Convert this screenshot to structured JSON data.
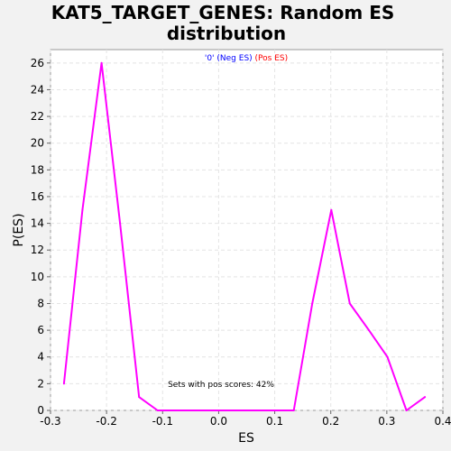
{
  "chart_data": {
    "type": "line",
    "title_line1": "KAT5_TARGET_GENES: Random ES",
    "title_line2": "distribution",
    "xlabel": "ES",
    "ylabel": "P(ES)",
    "xlim": [
      -0.3,
      0.4
    ],
    "ylim": [
      0,
      27
    ],
    "x_ticks": [
      "-0.3",
      "-0.2",
      "-0.1",
      "0.0",
      "0.1",
      "0.2",
      "0.3",
      "0.4"
    ],
    "y_ticks": [
      "0",
      "2",
      "4",
      "6",
      "8",
      "10",
      "12",
      "14",
      "16",
      "18",
      "20",
      "22",
      "24",
      "26"
    ],
    "grid": true,
    "legend": {
      "placement": "top-center",
      "series_label": "'0'",
      "neg_label": "(Neg ES)",
      "pos_label": "(Pos ES)",
      "neg_color": "#0000ff",
      "pos_color": "#ff0000"
    },
    "annotation": "Sets with pos scores: 42%",
    "series": [
      {
        "color": "#ff00ff",
        "x": [
          -0.276,
          -0.243,
          -0.209,
          -0.176,
          -0.142,
          -0.109,
          -0.075,
          -0.042,
          -0.008,
          0.025,
          0.059,
          0.092,
          0.134,
          0.167,
          0.201,
          0.234,
          0.268,
          0.301,
          0.335,
          0.368
        ],
        "y": [
          2,
          15,
          26,
          14,
          1,
          0,
          0,
          0,
          0,
          0,
          0,
          0,
          0,
          8,
          15,
          8,
          6,
          4,
          0,
          1
        ]
      }
    ]
  }
}
